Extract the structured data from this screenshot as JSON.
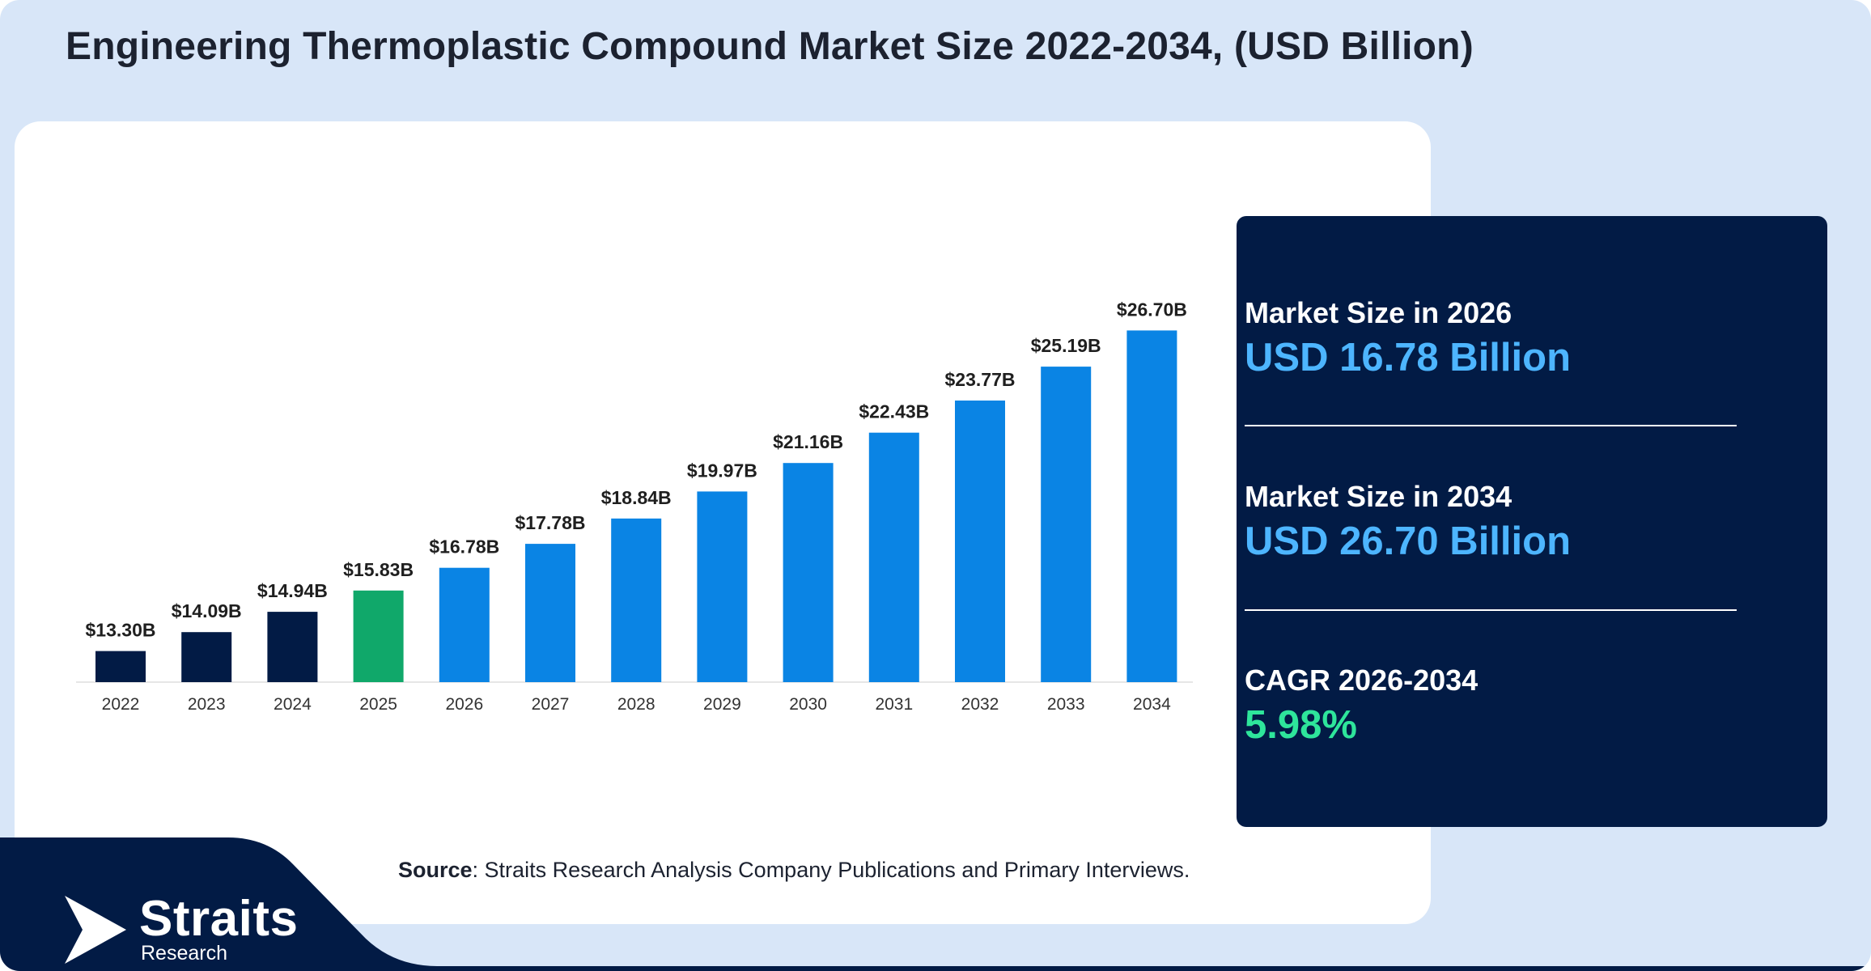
{
  "title": "Engineering Thermoplastic Compound Market Size 2022-2034, (USD Billion)",
  "chart_data": {
    "type": "bar",
    "categories": [
      "2022",
      "2023",
      "2024",
      "2025",
      "2026",
      "2027",
      "2028",
      "2029",
      "2030",
      "2031",
      "2032",
      "2033",
      "2034"
    ],
    "values": [
      13.3,
      14.09,
      14.94,
      15.83,
      16.78,
      17.78,
      18.84,
      19.97,
      21.16,
      22.43,
      23.77,
      25.19,
      26.7
    ],
    "data_labels": [
      "$13.30B",
      "$14.09B",
      "$14.94B",
      "$15.83B",
      "$16.78B",
      "$17.78B",
      "$18.84B",
      "$19.97B",
      "$21.16B",
      "$22.43B",
      "$23.77B",
      "$25.19B",
      "$26.70B"
    ],
    "bar_colors": [
      "#021b45",
      "#021b45",
      "#021b45",
      "#10a86a",
      "#0a84e4",
      "#0a84e4",
      "#0a84e4",
      "#0a84e4",
      "#0a84e4",
      "#0a84e4",
      "#0a84e4",
      "#0a84e4",
      "#0a84e4"
    ],
    "xlabel": "",
    "ylabel": "",
    "ylim": [
      12,
      28
    ],
    "grid": false,
    "legend": "none"
  },
  "stats": [
    {
      "label": "Market Size in 2026",
      "value": "USD 16.78 Billion"
    },
    {
      "label": "Market Size in 2034",
      "value": "USD 26.70 Billion"
    },
    {
      "label": "CAGR 2026-2034",
      "value": "5.98%"
    }
  ],
  "source": {
    "label": "Source",
    "text": ": Straits Research Analysis Company Publications and Primary Interviews."
  },
  "brand": {
    "name": "Straits",
    "sub": "Research"
  },
  "colors": {
    "background": "#d8e6f8",
    "panel": "#021b45",
    "accent_blue": "#4db5ff",
    "accent_green": "#2ee59b"
  }
}
